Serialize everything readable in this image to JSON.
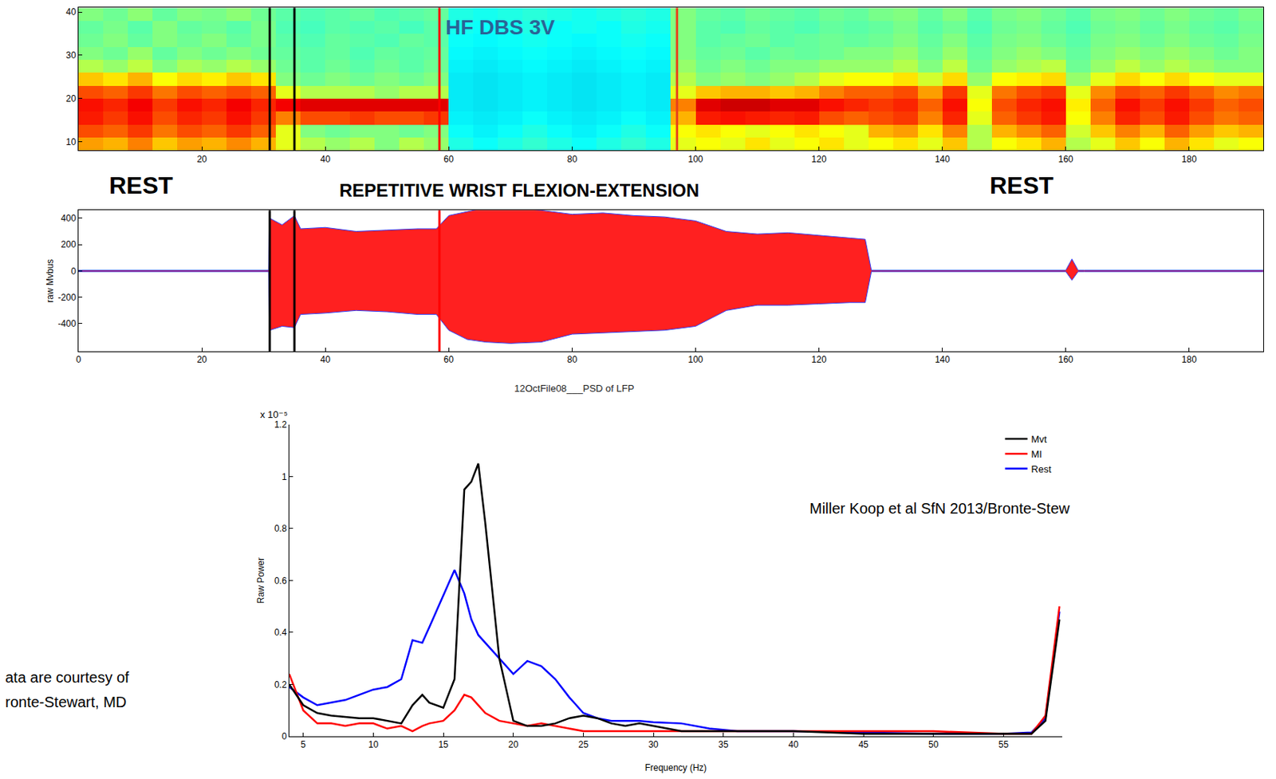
{
  "chart_data": [
    {
      "type": "heatmap",
      "title": "HF DBS 3V",
      "x": [
        2,
        6,
        10,
        14,
        18,
        22,
        26,
        30,
        34,
        38,
        42,
        46,
        50,
        54,
        58,
        62,
        66,
        70,
        74,
        78,
        82,
        86,
        90,
        94,
        98,
        102,
        106,
        110,
        114,
        118,
        122,
        126,
        130,
        134,
        138,
        142,
        146,
        150,
        154,
        158,
        162,
        166,
        170,
        174,
        178,
        182,
        186,
        190
      ],
      "y": [
        9.5,
        12.5,
        15.5,
        18.5,
        21.5,
        24.5,
        27.5,
        30.5,
        33.5,
        36.5,
        39.5
      ],
      "z": [
        [
          0.72,
          0.7,
          0.75,
          0.68,
          0.72,
          0.7,
          0.74,
          0.7,
          0.6,
          0.55,
          0.52,
          0.55,
          0.5,
          0.55,
          0.52,
          0.4,
          0.38,
          0.4,
          0.42,
          0.4,
          0.38,
          0.4,
          0.42,
          0.4,
          0.6,
          0.62,
          0.6,
          0.65,
          0.6,
          0.62,
          0.65,
          0.6,
          0.62,
          0.65,
          0.6,
          0.68,
          0.55,
          0.62,
          0.65,
          0.7,
          0.55,
          0.6,
          0.68,
          0.62,
          0.7,
          0.65,
          0.6,
          0.62
        ],
        [
          0.8,
          0.78,
          0.82,
          0.76,
          0.8,
          0.78,
          0.82,
          0.78,
          0.6,
          0.5,
          0.48,
          0.5,
          0.5,
          0.48,
          0.5,
          0.38,
          0.36,
          0.38,
          0.4,
          0.38,
          0.36,
          0.38,
          0.4,
          0.38,
          0.62,
          0.65,
          0.62,
          0.6,
          0.62,
          0.65,
          0.62,
          0.6,
          0.7,
          0.72,
          0.65,
          0.75,
          0.55,
          0.7,
          0.74,
          0.78,
          0.58,
          0.68,
          0.75,
          0.7,
          0.78,
          0.72,
          0.68,
          0.7
        ],
        [
          0.85,
          0.82,
          0.86,
          0.8,
          0.84,
          0.82,
          0.86,
          0.82,
          0.75,
          0.8,
          0.8,
          0.82,
          0.8,
          0.8,
          0.82,
          0.36,
          0.35,
          0.36,
          0.38,
          0.36,
          0.35,
          0.36,
          0.38,
          0.36,
          0.7,
          0.85,
          0.86,
          0.85,
          0.84,
          0.85,
          0.8,
          0.78,
          0.8,
          0.82,
          0.75,
          0.84,
          0.6,
          0.78,
          0.82,
          0.85,
          0.62,
          0.75,
          0.84,
          0.8,
          0.85,
          0.8,
          0.76,
          0.78
        ],
        [
          0.86,
          0.84,
          0.88,
          0.82,
          0.86,
          0.84,
          0.88,
          0.84,
          0.88,
          0.9,
          0.9,
          0.9,
          0.9,
          0.9,
          0.9,
          0.35,
          0.34,
          0.35,
          0.36,
          0.35,
          0.34,
          0.35,
          0.36,
          0.35,
          0.75,
          0.9,
          0.92,
          0.92,
          0.9,
          0.9,
          0.86,
          0.84,
          0.82,
          0.84,
          0.78,
          0.86,
          0.62,
          0.8,
          0.84,
          0.86,
          0.64,
          0.78,
          0.86,
          0.82,
          0.86,
          0.82,
          0.78,
          0.8
        ],
        [
          0.8,
          0.78,
          0.82,
          0.76,
          0.8,
          0.78,
          0.8,
          0.78,
          0.6,
          0.55,
          0.55,
          0.55,
          0.52,
          0.55,
          0.55,
          0.35,
          0.34,
          0.35,
          0.36,
          0.35,
          0.34,
          0.35,
          0.36,
          0.35,
          0.6,
          0.68,
          0.7,
          0.7,
          0.68,
          0.7,
          0.75,
          0.78,
          0.78,
          0.8,
          0.72,
          0.82,
          0.6,
          0.76,
          0.8,
          0.82,
          0.6,
          0.74,
          0.8,
          0.78,
          0.82,
          0.78,
          0.74,
          0.76
        ],
        [
          0.68,
          0.65,
          0.7,
          0.62,
          0.66,
          0.64,
          0.68,
          0.65,
          0.5,
          0.48,
          0.5,
          0.48,
          0.5,
          0.48,
          0.5,
          0.35,
          0.34,
          0.35,
          0.36,
          0.35,
          0.34,
          0.35,
          0.36,
          0.35,
          0.55,
          0.5,
          0.52,
          0.5,
          0.52,
          0.55,
          0.6,
          0.62,
          0.62,
          0.65,
          0.58,
          0.66,
          0.52,
          0.62,
          0.64,
          0.66,
          0.52,
          0.6,
          0.66,
          0.62,
          0.66,
          0.62,
          0.6,
          0.6
        ],
        [
          0.55,
          0.52,
          0.56,
          0.5,
          0.54,
          0.52,
          0.55,
          0.52,
          0.48,
          0.46,
          0.48,
          0.46,
          0.48,
          0.46,
          0.48,
          0.36,
          0.35,
          0.36,
          0.37,
          0.36,
          0.35,
          0.36,
          0.37,
          0.36,
          0.52,
          0.48,
          0.5,
          0.48,
          0.5,
          0.5,
          0.52,
          0.52,
          0.52,
          0.55,
          0.5,
          0.56,
          0.48,
          0.52,
          0.54,
          0.56,
          0.48,
          0.52,
          0.56,
          0.52,
          0.55,
          0.52,
          0.5,
          0.5
        ],
        [
          0.5,
          0.48,
          0.52,
          0.47,
          0.5,
          0.48,
          0.5,
          0.48,
          0.47,
          0.46,
          0.47,
          0.45,
          0.47,
          0.46,
          0.47,
          0.37,
          0.36,
          0.37,
          0.38,
          0.37,
          0.36,
          0.37,
          0.38,
          0.37,
          0.5,
          0.47,
          0.48,
          0.46,
          0.48,
          0.47,
          0.48,
          0.5,
          0.5,
          0.52,
          0.48,
          0.52,
          0.47,
          0.5,
          0.52,
          0.5,
          0.47,
          0.5,
          0.52,
          0.5,
          0.52,
          0.5,
          0.48,
          0.5
        ],
        [
          0.48,
          0.5,
          0.47,
          0.5,
          0.48,
          0.5,
          0.47,
          0.49,
          0.46,
          0.45,
          0.47,
          0.46,
          0.45,
          0.47,
          0.46,
          0.38,
          0.37,
          0.38,
          0.39,
          0.38,
          0.37,
          0.38,
          0.39,
          0.38,
          0.5,
          0.46,
          0.47,
          0.48,
          0.46,
          0.47,
          0.48,
          0.47,
          0.48,
          0.5,
          0.47,
          0.5,
          0.46,
          0.49,
          0.5,
          0.48,
          0.46,
          0.49,
          0.5,
          0.48,
          0.5,
          0.48,
          0.47,
          0.49
        ],
        [
          0.47,
          0.49,
          0.46,
          0.5,
          0.47,
          0.48,
          0.46,
          0.49,
          0.45,
          0.44,
          0.46,
          0.45,
          0.46,
          0.44,
          0.46,
          0.39,
          0.38,
          0.39,
          0.4,
          0.38,
          0.39,
          0.38,
          0.4,
          0.39,
          0.5,
          0.46,
          0.45,
          0.47,
          0.46,
          0.45,
          0.47,
          0.46,
          0.47,
          0.49,
          0.46,
          0.48,
          0.45,
          0.48,
          0.49,
          0.47,
          0.45,
          0.48,
          0.49,
          0.47,
          0.49,
          0.47,
          0.46,
          0.48
        ],
        [
          0.5,
          0.48,
          0.51,
          0.47,
          0.5,
          0.49,
          0.51,
          0.48,
          0.46,
          0.45,
          0.46,
          0.47,
          0.45,
          0.46,
          0.47,
          0.4,
          0.39,
          0.4,
          0.41,
          0.4,
          0.39,
          0.4,
          0.41,
          0.4,
          0.5,
          0.47,
          0.46,
          0.48,
          0.47,
          0.46,
          0.48,
          0.47,
          0.49,
          0.5,
          0.47,
          0.5,
          0.46,
          0.49,
          0.5,
          0.48,
          0.46,
          0.49,
          0.5,
          0.48,
          0.5,
          0.48,
          0.47,
          0.49
        ]
      ],
      "zlim": [
        0,
        1
      ],
      "xlim": [
        0,
        192
      ],
      "xticks": [
        20,
        40,
        60,
        80,
        100,
        120,
        140,
        160,
        180
      ],
      "ylim": [
        8,
        41
      ],
      "yticks": [
        10,
        20,
        30,
        40
      ],
      "event_lines": [
        {
          "x": 31,
          "color": "#000000"
        },
        {
          "x": 35,
          "color": "#000000"
        },
        {
          "x": 58.5,
          "color": "#ff0000"
        },
        {
          "x": 97,
          "color": "#e8401c"
        }
      ]
    },
    {
      "type": "band",
      "y_label": "raw Mvbus",
      "annotations": [
        "REST",
        "REPETITIVE WRIST FLEXION-EXTENSION",
        "REST"
      ],
      "x": [
        0,
        10,
        20,
        30,
        30.8,
        31,
        33,
        35,
        36,
        40,
        45,
        50,
        55,
        58,
        60,
        63,
        66,
        70,
        75,
        80,
        85,
        90,
        95,
        100,
        105,
        110,
        115,
        120,
        125,
        127.5,
        128.5,
        130,
        140,
        150,
        159,
        160,
        161,
        162,
        163,
        170,
        180,
        192
      ],
      "upper": [
        5,
        5,
        5,
        5,
        5,
        400,
        350,
        420,
        320,
        330,
        300,
        310,
        320,
        320,
        420,
        450,
        480,
        480,
        460,
        430,
        440,
        420,
        410,
        380,
        300,
        280,
        290,
        270,
        250,
        240,
        5,
        5,
        5,
        5,
        5,
        5,
        90,
        5,
        5,
        5,
        5,
        5
      ],
      "lower": [
        -5,
        -5,
        -5,
        -5,
        -5,
        -450,
        -420,
        -430,
        -330,
        -320,
        -300,
        -310,
        -330,
        -330,
        -450,
        -520,
        -540,
        -550,
        -540,
        -480,
        -470,
        -460,
        -450,
        -420,
        -300,
        -260,
        -260,
        -250,
        -240,
        -240,
        -5,
        -5,
        -5,
        -5,
        -5,
        -5,
        -70,
        -5,
        -5,
        -5,
        -5,
        -5
      ],
      "color": "#ff2020",
      "xlim": [
        0,
        192
      ],
      "xticks": [
        0,
        20,
        40,
        60,
        80,
        100,
        120,
        140,
        160,
        180
      ],
      "ylim": [
        -610,
        460
      ],
      "yticks": [
        -400,
        -200,
        0,
        200,
        400
      ],
      "event_lines": [
        {
          "x": 31,
          "color": "#000000"
        },
        {
          "x": 35,
          "color": "#000000"
        },
        {
          "x": 58.5,
          "color": "#ff0000"
        }
      ]
    },
    {
      "type": "line",
      "title": "12OctFile08___PSD of LFP",
      "x_label": "Frequency (Hz)",
      "y_label": "Raw Power",
      "y_exponent_label": "x 10⁻⁵",
      "annotations": [
        "Miller Koop et al SfN 2013/Bronte-Stew",
        "ata are courtesy of",
        "ronte-Stewart, MD"
      ],
      "legend": "upper right",
      "x": [
        4,
        5,
        6,
        7,
        8,
        9,
        10,
        11,
        12,
        12.8,
        13.5,
        14,
        15,
        15.8,
        16.5,
        17,
        17.5,
        18,
        19,
        20,
        21,
        22,
        23,
        24,
        25,
        26,
        27,
        28,
        29,
        30,
        32,
        34,
        36,
        38,
        40,
        45,
        50,
        55,
        57,
        58,
        59
      ],
      "series": [
        {
          "name": "Rest",
          "color": "#0000ff",
          "values": [
            0.19,
            0.15,
            0.12,
            0.13,
            0.14,
            0.16,
            0.18,
            0.19,
            0.22,
            0.37,
            0.36,
            0.42,
            0.54,
            0.64,
            0.55,
            0.45,
            0.39,
            0.36,
            0.3,
            0.24,
            0.29,
            0.27,
            0.22,
            0.15,
            0.09,
            0.07,
            0.06,
            0.06,
            0.06,
            0.055,
            0.05,
            0.03,
            0.02,
            0.02,
            0.02,
            0.015,
            0.01,
            0.01,
            0.015,
            0.07,
            0.48
          ]
        },
        {
          "name": "MI",
          "color": "#ff0000",
          "values": [
            0.24,
            0.1,
            0.05,
            0.05,
            0.04,
            0.05,
            0.05,
            0.03,
            0.04,
            0.02,
            0.04,
            0.05,
            0.06,
            0.1,
            0.16,
            0.15,
            0.12,
            0.09,
            0.06,
            0.05,
            0.04,
            0.05,
            0.04,
            0.03,
            0.02,
            0.02,
            0.02,
            0.02,
            0.02,
            0.02,
            0.02,
            0.02,
            0.02,
            0.02,
            0.02,
            0.02,
            0.02,
            0.01,
            0.01,
            0.08,
            0.5
          ]
        },
        {
          "name": "Mvt",
          "color": "#000000",
          "values": [
            0.2,
            0.12,
            0.09,
            0.08,
            0.075,
            0.07,
            0.07,
            0.06,
            0.05,
            0.12,
            0.16,
            0.13,
            0.11,
            0.22,
            0.95,
            0.98,
            1.05,
            0.82,
            0.3,
            0.06,
            0.04,
            0.04,
            0.05,
            0.07,
            0.08,
            0.07,
            0.05,
            0.04,
            0.05,
            0.04,
            0.02,
            0.02,
            0.02,
            0.02,
            0.02,
            0.01,
            0.01,
            0.01,
            0.01,
            0.06,
            0.45
          ]
        }
      ],
      "xlim": [
        4,
        59.2
      ],
      "xticks": [
        5,
        10,
        15,
        20,
        25,
        30,
        35,
        40,
        45,
        50,
        55
      ],
      "ylim": [
        0,
        1.2
      ],
      "yticks": [
        0,
        0.2,
        0.4,
        0.6,
        0.8,
        1,
        1.2
      ]
    }
  ]
}
